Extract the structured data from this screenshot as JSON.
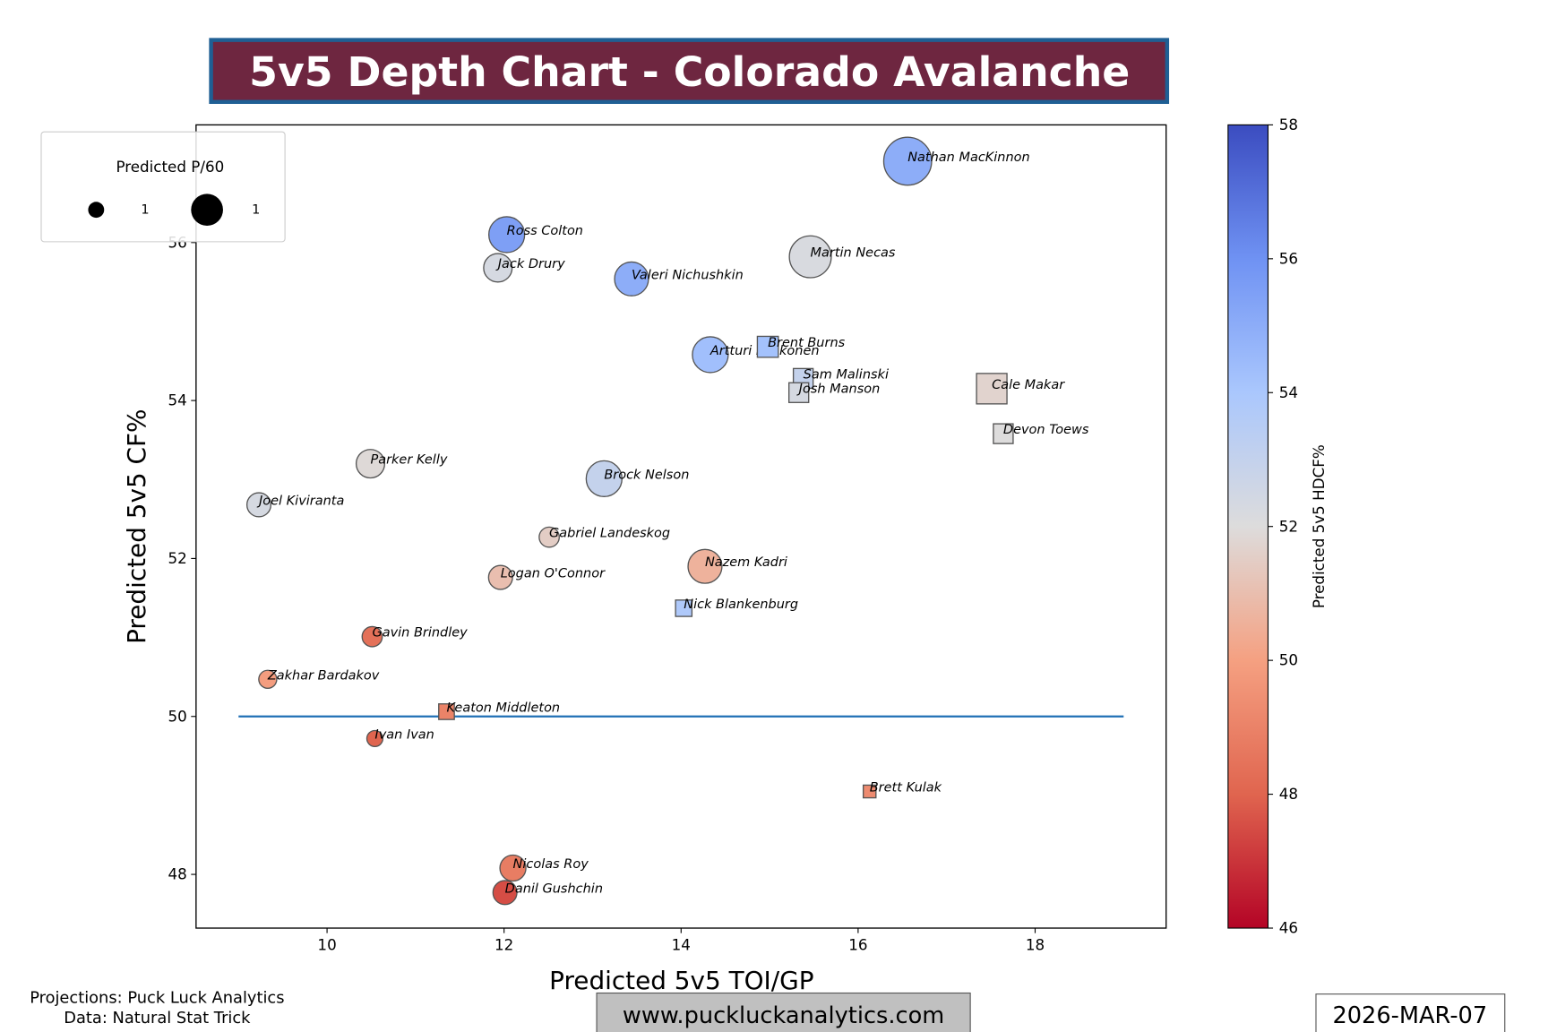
{
  "title": "5v5 Depth Chart - Colorado Avalanche",
  "footer": {
    "projections": "Projections: Puck Luck Analytics",
    "data_source": "Data: Natural Stat Trick",
    "website": "www.puckluckanalytics.com",
    "date": "2026-MAR-07"
  },
  "colors": {
    "title_bg": "#6e2640",
    "title_border": "#1f5f94",
    "reference_line": "#1f6fb5"
  },
  "chart_data": {
    "type": "scatter",
    "xlabel": "Predicted 5v5 TOI/GP",
    "ylabel": "Predicted 5v5 CF%",
    "xlim": [
      8.52,
      19.48
    ],
    "ylim": [
      47.32,
      57.49
    ],
    "xticks": [
      10,
      12,
      14,
      16,
      18
    ],
    "yticks": [
      48,
      50,
      52,
      54,
      56
    ],
    "reference_line": {
      "y": 50,
      "x_from": 9,
      "x_to": 19
    },
    "colorbar": {
      "label": "Predicted 5v5 HDCF%",
      "range": [
        46,
        58
      ],
      "ticks": [
        46,
        48,
        50,
        52,
        54,
        56,
        58
      ],
      "colormap": "coolwarm"
    },
    "legend": {
      "title": "Predicted P/60",
      "entries": [
        "1",
        "1"
      ],
      "placement": "upper-left"
    },
    "points": [
      {
        "name": "Nathan MacKinnon",
        "pos": "F",
        "toi": 16.56,
        "cf": 57.03,
        "hdcf": 55.0,
        "p60": 3.4
      },
      {
        "name": "Ross Colton",
        "pos": "F",
        "toi": 12.03,
        "cf": 56.1,
        "hdcf": 55.5,
        "p60": 1.9
      },
      {
        "name": "Jack Drury",
        "pos": "F",
        "toi": 11.93,
        "cf": 55.68,
        "hdcf": 52.3,
        "p60": 1.2
      },
      {
        "name": "Valeri Nichushkin",
        "pos": "F",
        "toi": 13.44,
        "cf": 55.54,
        "hdcf": 55.0,
        "p60": 1.7
      },
      {
        "name": "Martin Necas",
        "pos": "F",
        "toi": 15.46,
        "cf": 55.82,
        "hdcf": 52.2,
        "p60": 2.6
      },
      {
        "name": "Artturi Lehkonen",
        "pos": "F",
        "toi": 14.33,
        "cf": 54.58,
        "hdcf": 54.3,
        "p60": 1.9
      },
      {
        "name": "Brent Burns",
        "pos": "D",
        "toi": 14.98,
        "cf": 54.68,
        "hdcf": 54.2,
        "p60": 0.9
      },
      {
        "name": "Sam Malinski",
        "pos": "D",
        "toi": 15.38,
        "cf": 54.28,
        "hdcf": 53.0,
        "p60": 0.8
      },
      {
        "name": "Josh Manson",
        "pos": "D",
        "toi": 15.33,
        "cf": 54.1,
        "hdcf": 52.3,
        "p60": 0.8
      },
      {
        "name": "Cale Makar",
        "pos": "D",
        "toi": 17.51,
        "cf": 54.15,
        "hdcf": 51.7,
        "p60": 1.9
      },
      {
        "name": "Devon Toews",
        "pos": "D",
        "toi": 17.64,
        "cf": 53.58,
        "hdcf": 52.0,
        "p60": 0.8
      },
      {
        "name": "Parker Kelly",
        "pos": "F",
        "toi": 10.49,
        "cf": 53.2,
        "hdcf": 51.9,
        "p60": 1.2
      },
      {
        "name": "Brock Nelson",
        "pos": "F",
        "toi": 13.13,
        "cf": 53.01,
        "hdcf": 53.0,
        "p60": 1.9
      },
      {
        "name": "Joel Kiviranta",
        "pos": "F",
        "toi": 9.23,
        "cf": 52.68,
        "hdcf": 52.3,
        "p60": 0.85
      },
      {
        "name": "Gabriel Landeskog",
        "pos": "F",
        "toi": 12.51,
        "cf": 52.27,
        "hdcf": 51.5,
        "p60": 0.6
      },
      {
        "name": "Logan O'Connor",
        "pos": "F",
        "toi": 11.96,
        "cf": 51.76,
        "hdcf": 51.0,
        "p60": 0.85
      },
      {
        "name": "Nazem Kadri",
        "pos": "F",
        "toi": 14.27,
        "cf": 51.9,
        "hdcf": 50.6,
        "p60": 1.7
      },
      {
        "name": "Nick Blankenburg",
        "pos": "D",
        "toi": 14.03,
        "cf": 51.37,
        "hdcf": 53.8,
        "p60": 0.55
      },
      {
        "name": "Gavin Brindley",
        "pos": "F",
        "toi": 10.51,
        "cf": 51.01,
        "hdcf": 48.4,
        "p60": 0.6
      },
      {
        "name": "Zakhar Bardakov",
        "pos": "F",
        "toi": 9.33,
        "cf": 50.47,
        "hdcf": 49.9,
        "p60": 0.48
      },
      {
        "name": "Keaton Middleton",
        "pos": "D",
        "toi": 11.35,
        "cf": 50.06,
        "hdcf": 49.0,
        "p60": 0.5
      },
      {
        "name": "Ivan Ivan",
        "pos": "F",
        "toi": 10.54,
        "cf": 49.72,
        "hdcf": 48.0,
        "p60": 0.38
      },
      {
        "name": "Brett Kulak",
        "pos": "D",
        "toi": 16.13,
        "cf": 49.05,
        "hdcf": 49.3,
        "p60": 0.33
      },
      {
        "name": "Nicolas Roy",
        "pos": "F",
        "toi": 12.1,
        "cf": 48.08,
        "hdcf": 48.8,
        "p60": 1.0
      },
      {
        "name": "Danil Gushchin",
        "pos": "F",
        "toi": 12.01,
        "cf": 47.77,
        "hdcf": 47.5,
        "p60": 0.85
      }
    ]
  }
}
